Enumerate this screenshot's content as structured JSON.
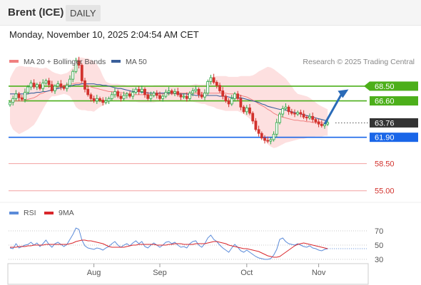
{
  "header": {
    "title": "Brent (ICE)",
    "period": "DAILY"
  },
  "timestamp": "Monday, November 10, 2025 2:04:54 AM CET",
  "colors": {
    "ma20": "#f08080",
    "ma50": "#3a5f9a",
    "band": "#fde0e0",
    "up": "#27a844",
    "down": "#d2322d",
    "resistance": "#4caf1a",
    "support_blue": "#1a66e8",
    "support_red": "#f3a0a0",
    "last_price_bg": "#333333",
    "rsi": "#5b8bd9",
    "rsi_ma": "#d9262b",
    "arrow": "#2a6bb8"
  },
  "chart_data": [
    {
      "type": "candlestick",
      "legend": [
        {
          "label": "MA 20 + Bollinger Bands",
          "color": "#f08080"
        },
        {
          "label": "MA 50",
          "color": "#3a5f9a"
        }
      ],
      "legend_placement": "top-left",
      "credit": "Research © 2025 Trading Central",
      "ylim": [
        53.5,
        73
      ],
      "x_ticks": [
        {
          "label": "Aug",
          "index": 28
        },
        {
          "label": "Sep",
          "index": 50
        },
        {
          "label": "Oct",
          "index": 79
        },
        {
          "label": "Nov",
          "index": 103
        }
      ],
      "closes": [
        66.4,
        66.9,
        67.5,
        67.0,
        66.8,
        67.7,
        68.4,
        68.9,
        68.4,
        68.7,
        68.2,
        68.9,
        69.2,
        68.7,
        67.9,
        68.5,
        68.8,
        68.4,
        68.2,
        68.6,
        69.4,
        70.4,
        71.8,
        71.2,
        69.2,
        68.1,
        67.4,
        66.9,
        66.6,
        66.9,
        66.7,
        66.4,
        66.6,
        66.9,
        67.4,
        67.8,
        67.2,
        66.9,
        67.3,
        67.5,
        67.2,
        67.7,
        68.1,
        67.8,
        68.1,
        67.4,
        66.9,
        67.3,
        67.6,
        67.3,
        66.9,
        67.2,
        67.7,
        67.9,
        67.6,
        67.8,
        67.4,
        67.1,
        67.2,
        66.9,
        67.6,
        67.9,
        68.1,
        67.4,
        67.1,
        67.6,
        69.1,
        69.6,
        69.0,
        68.6,
        67.9,
        67.2,
        66.6,
        66.2,
        66.9,
        67.5,
        66.9,
        65.8,
        65.2,
        65.7,
        65.0,
        64.0,
        62.9,
        62.4,
        61.8,
        61.5,
        61.4,
        61.6,
        62.3,
        63.8,
        64.9,
        65.6,
        65.8,
        65.2,
        65.0,
        64.9,
        65.1,
        64.9,
        64.5,
        64.4,
        64.6,
        64.2,
        63.9,
        63.6,
        63.4,
        63.6,
        63.8
      ],
      "ma20": [
        66.6,
        66.6,
        66.6,
        66.6,
        66.6,
        66.7,
        66.8,
        66.9,
        67.0,
        67.2,
        67.5,
        67.6,
        67.8,
        67.9,
        68.1,
        68.2,
        68.4,
        68.5,
        68.6,
        68.7,
        68.8,
        68.8,
        68.9,
        68.9,
        68.9,
        68.7,
        68.6,
        68.4,
        68.3,
        68.2,
        68.1,
        68.0,
        67.9,
        67.8,
        67.8,
        67.7,
        67.7,
        67.7,
        67.6,
        67.5,
        67.5,
        67.4,
        67.4,
        67.4,
        67.4,
        67.4,
        67.4,
        67.4,
        67.4,
        67.5,
        67.5,
        67.5,
        67.5,
        67.5,
        67.5,
        67.5,
        67.6,
        67.6,
        67.6,
        67.6,
        67.6,
        67.6,
        67.6,
        67.6,
        67.6,
        67.6,
        67.6,
        67.6,
        67.6,
        67.6,
        67.6,
        67.6,
        67.6,
        67.5,
        67.5,
        67.5,
        67.4,
        67.3,
        67.2,
        67.1,
        66.9,
        66.7,
        66.5,
        66.2,
        66.0,
        65.8,
        65.5,
        65.3,
        65.0,
        64.8,
        64.6,
        64.5,
        64.4,
        64.3,
        64.2,
        64.1,
        64.1,
        64.0,
        64.0,
        63.9,
        63.9,
        63.8,
        63.8,
        63.8,
        63.8,
        63.7,
        63.7
      ],
      "bb_upper": [
        69.5,
        70.3,
        70.9,
        71.1,
        71.1,
        71.0,
        71.0,
        71.0,
        70.9,
        70.9,
        70.8,
        70.8,
        70.9,
        70.7,
        70.4,
        70.2,
        70.1,
        70.0,
        70.1,
        70.2,
        70.5,
        71.0,
        72.0,
        72.2,
        72.2,
        72.1,
        72.1,
        71.9,
        71.7,
        71.3,
        70.7,
        69.8,
        69.1,
        68.9,
        68.8,
        68.8,
        68.8,
        68.7,
        68.7,
        68.6,
        68.6,
        68.6,
        68.6,
        68.6,
        68.5,
        68.5,
        68.5,
        68.5,
        68.6,
        68.6,
        68.6,
        68.6,
        68.6,
        68.6,
        68.6,
        68.6,
        68.6,
        68.6,
        68.6,
        68.6,
        68.6,
        68.7,
        68.8,
        68.7,
        68.7,
        68.7,
        69.2,
        69.6,
        69.7,
        69.8,
        69.8,
        69.8,
        69.8,
        69.7,
        69.7,
        69.7,
        69.7,
        69.8,
        69.8,
        69.8,
        69.8,
        69.9,
        70.1,
        70.4,
        70.6,
        70.8,
        71.0,
        70.9,
        70.7,
        70.4,
        70.1,
        69.8,
        69.5,
        69.0,
        68.5,
        67.9,
        67.5,
        67.4,
        67.3,
        67.2,
        67.0,
        66.7,
        66.4,
        66.1,
        65.9,
        65.7,
        65.5
      ],
      "bb_lower": [
        63.7,
        62.9,
        62.6,
        62.3,
        62.5,
        62.7,
        62.9,
        63.2,
        63.5,
        64.1,
        64.8,
        65.5,
        66.2,
        66.8,
        67.2,
        67.2,
        67.3,
        67.4,
        67.5,
        67.4,
        67.2,
        66.6,
        65.8,
        65.5,
        65.4,
        65.4,
        65.3,
        65.3,
        65.2,
        65.5,
        65.8,
        66.0,
        66.2,
        66.4,
        66.6,
        66.6,
        66.6,
        66.6,
        66.6,
        66.6,
        66.5,
        66.5,
        66.5,
        66.4,
        66.4,
        66.4,
        66.4,
        66.4,
        66.4,
        66.5,
        66.5,
        66.5,
        66.5,
        66.5,
        66.5,
        66.5,
        66.5,
        66.5,
        66.5,
        66.5,
        66.5,
        66.5,
        66.4,
        66.3,
        66.2,
        66.2,
        66.0,
        65.9,
        65.8,
        65.6,
        65.5,
        65.4,
        65.3,
        65.3,
        65.3,
        65.3,
        65.3,
        65.1,
        64.9,
        64.6,
        64.3,
        63.9,
        63.4,
        62.8,
        62.1,
        61.5,
        61.0,
        60.7,
        60.5,
        60.6,
        60.8,
        61.0,
        61.2,
        61.3,
        61.4,
        61.5,
        61.6,
        61.7,
        61.7,
        61.8,
        61.9,
        61.9,
        62.0,
        62.0,
        62.0,
        62.1,
        62.1
      ],
      "ma50": [
        67.5,
        67.5,
        67.5,
        67.5,
        67.5,
        67.5,
        67.5,
        67.6,
        67.6,
        67.7,
        67.7,
        67.8,
        67.8,
        67.9,
        68.0,
        68.1,
        68.2,
        68.3,
        68.4,
        68.4,
        68.5,
        68.6,
        68.7,
        68.7,
        68.8,
        68.8,
        68.8,
        68.8,
        68.8,
        68.7,
        68.7,
        68.6,
        68.6,
        68.5,
        68.4,
        68.3,
        68.2,
        68.2,
        68.1,
        68.0,
        67.9,
        67.8,
        67.8,
        67.8,
        67.7,
        67.7,
        67.6,
        67.6,
        67.6,
        67.6,
        67.6,
        67.6,
        67.6,
        67.6,
        67.6,
        67.6,
        67.5,
        67.5,
        67.5,
        67.5,
        67.4,
        67.4,
        67.3,
        67.3,
        67.3,
        67.3,
        67.3,
        67.3,
        67.3,
        67.3,
        67.2,
        67.2,
        67.2,
        67.1,
        67.0,
        67.0,
        67.0,
        67.0,
        66.9,
        66.8,
        66.7,
        66.6,
        66.5,
        66.4,
        66.2,
        66.1,
        65.9,
        65.8,
        65.7,
        65.6,
        65.5,
        65.5,
        65.4,
        65.3,
        65.2,
        65.1,
        65.0,
        64.9,
        64.8,
        64.7,
        64.6,
        64.5,
        64.4,
        64.3,
        64.2,
        64.1,
        64.0
      ],
      "levels": [
        {
          "value": 68.5,
          "label": "68.50",
          "kind": "resistance"
        },
        {
          "value": 66.6,
          "label": "66.60",
          "kind": "resistance"
        },
        {
          "value": 63.76,
          "label": "63.76",
          "kind": "last"
        },
        {
          "value": 61.9,
          "label": "61.90",
          "kind": "support"
        },
        {
          "value": 58.5,
          "label": "58.50",
          "kind": "support2"
        },
        {
          "value": 55.0,
          "label": "55.00",
          "kind": "support2"
        }
      ],
      "forecast_arrow": {
        "from": {
          "index": 105,
          "value": 63.6
        },
        "to": {
          "index": 112,
          "value": 67.8
        }
      }
    },
    {
      "type": "line",
      "legend": [
        {
          "label": "RSI",
          "color": "#5b8bd9"
        },
        {
          "label": "9MA",
          "color": "#d9262b"
        }
      ],
      "legend_placement": "top-left",
      "ylim": [
        22,
        80
      ],
      "y_ticks": [
        70,
        50,
        30
      ],
      "series": [
        {
          "name": "RSI",
          "values": [
            46,
            45,
            52,
            46,
            48,
            50,
            51,
            54,
            50,
            53,
            48,
            52,
            57,
            51,
            47,
            52,
            54,
            51,
            48,
            51,
            58,
            65,
            74,
            72,
            57,
            49,
            46,
            45,
            44,
            46,
            45,
            43,
            46,
            48,
            52,
            55,
            50,
            47,
            50,
            52,
            49,
            53,
            56,
            52,
            55,
            48,
            46,
            50,
            53,
            50,
            47,
            50,
            54,
            55,
            52,
            54,
            50,
            47,
            48,
            46,
            52,
            55,
            56,
            50,
            47,
            52,
            60,
            64,
            58,
            55,
            50,
            46,
            43,
            40,
            46,
            51,
            47,
            42,
            40,
            43,
            40,
            37,
            34,
            32,
            31,
            30,
            30,
            31,
            36,
            44,
            58,
            60,
            55,
            52,
            51,
            50,
            52,
            50,
            48,
            47,
            49,
            46,
            45,
            43,
            42,
            44,
            45
          ]
        },
        {
          "name": "9MA",
          "values": [
            47,
            47,
            47,
            48,
            48,
            48,
            49,
            49,
            50,
            50,
            50,
            50,
            51,
            51,
            51,
            51,
            51,
            51,
            51,
            51,
            52,
            53,
            55,
            56,
            57,
            57,
            56,
            56,
            55,
            54,
            53,
            52,
            50,
            48,
            47,
            47,
            47,
            47,
            47,
            48,
            49,
            50,
            50,
            51,
            51,
            51,
            51,
            51,
            51,
            50,
            50,
            50,
            50,
            51,
            51,
            52,
            52,
            52,
            51,
            51,
            51,
            51,
            52,
            52,
            52,
            52,
            53,
            54,
            55,
            55,
            54,
            53,
            52,
            50,
            49,
            48,
            47,
            46,
            45,
            45,
            44,
            43,
            42,
            41,
            39,
            37,
            35,
            34,
            33,
            33,
            34,
            37,
            40,
            43,
            46,
            49,
            51,
            52,
            53,
            52,
            51,
            50,
            49,
            48,
            47,
            46,
            45
          ]
        }
      ]
    }
  ]
}
